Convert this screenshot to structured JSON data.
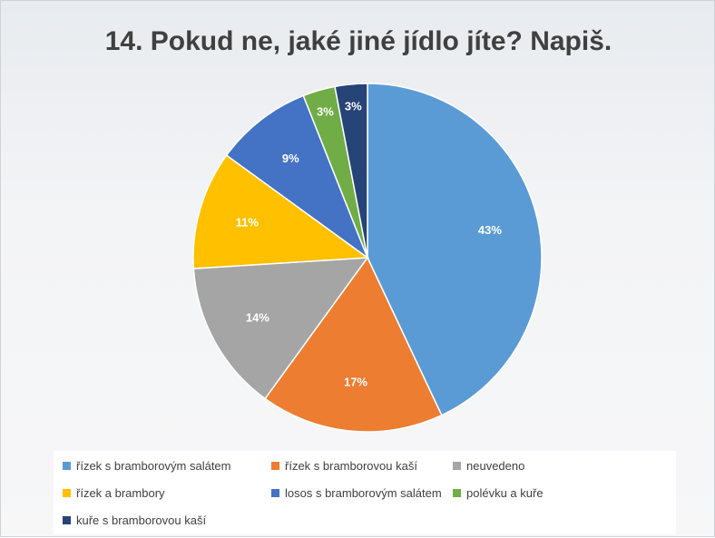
{
  "chart_data": {
    "type": "pie",
    "title": "14. Pokud ne, jaké jiné jídlo jíte? Napiš.",
    "slices": [
      {
        "label": "řízek s bramborovým salátem",
        "value": 43,
        "display": "43%",
        "color": "#5b9bd5"
      },
      {
        "label": "řízek s bramborovou kaší",
        "value": 17,
        "display": "17%",
        "color": "#ed7d31"
      },
      {
        "label": "neuvedeno",
        "value": 14,
        "display": "14%",
        "color": "#a5a5a5"
      },
      {
        "label": "řízek a brambory",
        "value": 11,
        "display": "11%",
        "color": "#ffc000"
      },
      {
        "label": "losos s bramborovým salátem",
        "value": 9,
        "display": "9%",
        "color": "#4472c4"
      },
      {
        "label": "polévku a kuře",
        "value": 3,
        "display": "3%",
        "color": "#70ad47"
      },
      {
        "label": "kuře s bramborovou kaší",
        "value": 3,
        "display": "3%",
        "color": "#264478"
      }
    ],
    "legend_position": "bottom"
  }
}
